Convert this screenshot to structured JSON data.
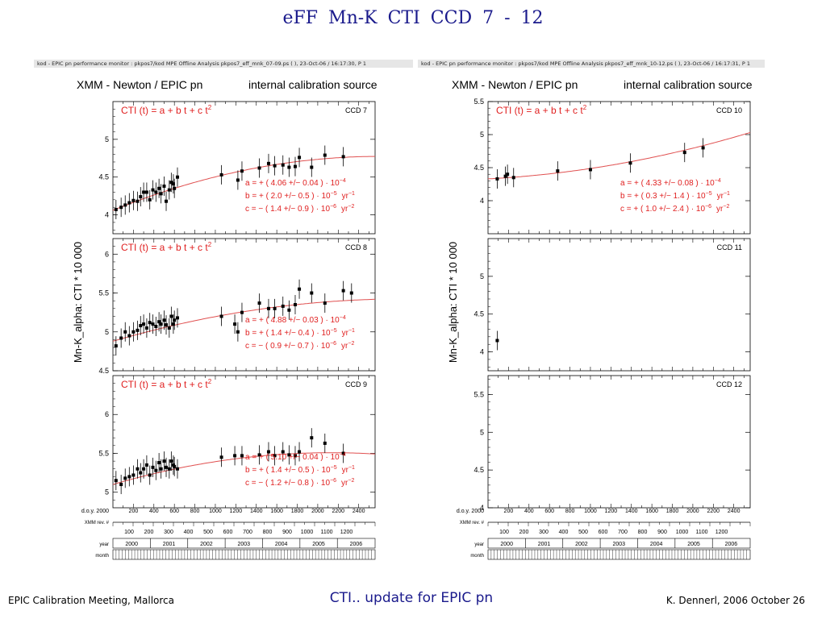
{
  "slide": {
    "title": "eFF   Mn-K   CTI   CCD 7 - 12",
    "footer_left": "EPIC Calibration Meeting, Mallorca",
    "footer_center": "CTI.. update for EPIC pn",
    "footer_right": "K. Dennerl, 2006 October 26"
  },
  "colors": {
    "fit": "#e05050",
    "text_red": "#e02020",
    "title": "#1a1a8c"
  },
  "chart_data": [
    {
      "type": "scatter",
      "monitor_label": "kod - EPIC pn performance monitor : pkpos7/kod     MPE   Offline Analysis     pkpos7_eff_mnk_07-09.ps ( ), 23-Oct-06 / 16:17:30, P   1",
      "header_left": "XMM - Newton  /  EPIC pn",
      "header_right": "internal calibration source",
      "ylabel": "Mn-K_alpha:  CTI * 10 000",
      "x_axis_label": "d.o.y. 2000",
      "x_ticks": [
        "200",
        "400",
        "600",
        "800",
        "1000",
        "1200",
        "1400",
        "1600",
        "1800",
        "2000",
        "2200",
        "2400"
      ],
      "rev_label": "XMM rev. #",
      "rev_ticks": [
        "100",
        "200",
        "300",
        "400",
        "500",
        "600",
        "700",
        "800",
        "900",
        "1000",
        "1100",
        "1200"
      ],
      "year_label": "year",
      "years": [
        "2000",
        "2001",
        "2002",
        "2003",
        "2004",
        "2005",
        "2006"
      ],
      "month_label": "month",
      "xlim": [
        0,
        2560
      ],
      "panels": [
        {
          "ccd": "CCD  7",
          "formula": "CTI (t)  =  a + b t + c t",
          "formula_sup": "2",
          "ylim": [
            3.75,
            5.5
          ],
          "yticks": [
            "4",
            "4.5",
            "5"
          ],
          "coef": {
            "a": "a  =  + ( 4.06 +/− 0.04 ) · 10",
            "a_exp": "−4",
            "b": "b  =  + ( 2.0 +/− 0.5 ) · 10",
            "b_exp": "−5",
            "b_unit": "yr",
            "b_uexp": "−1",
            "c": "c  =  − ( 1.4 +/− 0.9 ) · 10",
            "c_exp": "−6",
            "c_unit": "yr",
            "c_uexp": "−2"
          },
          "fit": {
            "a": 4.06,
            "b": 2.0,
            "c": -1.4
          },
          "points": [
            [
              30,
              4.07
            ],
            [
              80,
              4.1
            ],
            [
              120,
              4.13
            ],
            [
              160,
              4.16
            ],
            [
              200,
              4.19
            ],
            [
              240,
              4.18
            ],
            [
              270,
              4.24
            ],
            [
              300,
              4.3
            ],
            [
              330,
              4.3
            ],
            [
              360,
              4.2
            ],
            [
              390,
              4.33
            ],
            [
              420,
              4.3
            ],
            [
              450,
              4.35
            ],
            [
              470,
              4.28
            ],
            [
              500,
              4.38
            ],
            [
              520,
              4.18
            ],
            [
              550,
              4.33
            ],
            [
              570,
              4.43
            ],
            [
              590,
              4.41
            ],
            [
              600,
              4.35
            ],
            [
              630,
              4.5
            ],
            [
              1060,
              4.53
            ],
            [
              1220,
              4.46
            ],
            [
              1260,
              4.58
            ],
            [
              1430,
              4.62
            ],
            [
              1520,
              4.68
            ],
            [
              1580,
              4.65
            ],
            [
              1660,
              4.66
            ],
            [
              1720,
              4.63
            ],
            [
              1780,
              4.64
            ],
            [
              1820,
              4.76
            ],
            [
              1940,
              4.63
            ],
            [
              2070,
              4.79
            ],
            [
              2250,
              4.77
            ]
          ]
        },
        {
          "ccd": "CCD  8",
          "formula": "CTI (t)  =  a + b t + c t",
          "formula_sup": "2",
          "ylim": [
            4.5,
            6.2
          ],
          "yticks": [
            "4.5",
            "5",
            "5.5",
            "6"
          ],
          "coef": {
            "a": "a  =  + ( 4.88 +/− 0.03 ) · 10",
            "a_exp": "−4",
            "b": "b  =  + ( 1.4 +/− 0.4 ) · 10",
            "b_exp": "−5",
            "b_unit": "yr",
            "b_uexp": "−1",
            "c": "c  =  − ( 0.9 +/− 0.7 ) · 10",
            "c_exp": "−6",
            "c_unit": "yr",
            "c_uexp": "−2"
          },
          "fit": {
            "a": 4.88,
            "b": 1.4,
            "c": -0.9
          },
          "points": [
            [
              30,
              4.82
            ],
            [
              80,
              4.92
            ],
            [
              120,
              5.0
            ],
            [
              160,
              4.95
            ],
            [
              200,
              5.0
            ],
            [
              240,
              5.02
            ],
            [
              270,
              5.08
            ],
            [
              300,
              5.1
            ],
            [
              330,
              5.05
            ],
            [
              360,
              5.12
            ],
            [
              390,
              5.1
            ],
            [
              420,
              5.07
            ],
            [
              450,
              5.13
            ],
            [
              470,
              5.1
            ],
            [
              500,
              5.15
            ],
            [
              520,
              5.09
            ],
            [
              550,
              5.05
            ],
            [
              570,
              5.2
            ],
            [
              590,
              5.1
            ],
            [
              600,
              5.15
            ],
            [
              630,
              5.18
            ],
            [
              1060,
              5.2
            ],
            [
              1190,
              5.1
            ],
            [
              1220,
              5.0
            ],
            [
              1260,
              5.25
            ],
            [
              1430,
              5.37
            ],
            [
              1520,
              5.3
            ],
            [
              1580,
              5.3
            ],
            [
              1660,
              5.33
            ],
            [
              1720,
              5.28
            ],
            [
              1780,
              5.35
            ],
            [
              1820,
              5.55
            ],
            [
              1940,
              5.5
            ],
            [
              2070,
              5.37
            ],
            [
              2250,
              5.53
            ],
            [
              2330,
              5.5
            ]
          ]
        },
        {
          "ccd": "CCD  9",
          "formula": "CTI (t)  =  a + b t + c t",
          "formula_sup": "2",
          "ylim": [
            4.8,
            6.5
          ],
          "yticks": [
            "5",
            "5.5",
            "6"
          ],
          "coef": {
            "a": "a  =  + ( 5.10 +/− 0.04 ) · 10",
            "a_exp": "−4",
            "b": "b  =  + ( 1.4 +/− 0.5 ) · 10",
            "b_exp": "−5",
            "b_unit": "yr",
            "b_uexp": "−1",
            "c": "c  =  − ( 1.2 +/− 0.8 ) · 10",
            "c_exp": "−6",
            "c_unit": "yr",
            "c_uexp": "−2"
          },
          "fit": {
            "a": 5.1,
            "b": 1.4,
            "c": -1.2
          },
          "points": [
            [
              30,
              5.15
            ],
            [
              80,
              5.1
            ],
            [
              120,
              5.18
            ],
            [
              160,
              5.2
            ],
            [
              200,
              5.22
            ],
            [
              240,
              5.3
            ],
            [
              270,
              5.25
            ],
            [
              300,
              5.3
            ],
            [
              330,
              5.35
            ],
            [
              360,
              5.22
            ],
            [
              390,
              5.32
            ],
            [
              420,
              5.28
            ],
            [
              450,
              5.38
            ],
            [
              470,
              5.3
            ],
            [
              500,
              5.4
            ],
            [
              520,
              5.32
            ],
            [
              550,
              5.3
            ],
            [
              570,
              5.4
            ],
            [
              590,
              5.35
            ],
            [
              600,
              5.33
            ],
            [
              630,
              5.3
            ],
            [
              1060,
              5.45
            ],
            [
              1190,
              5.47
            ],
            [
              1260,
              5.47
            ],
            [
              1430,
              5.48
            ],
            [
              1520,
              5.52
            ],
            [
              1580,
              5.47
            ],
            [
              1660,
              5.52
            ],
            [
              1720,
              5.48
            ],
            [
              1780,
              5.47
            ],
            [
              1820,
              5.52
            ],
            [
              1940,
              5.7
            ],
            [
              2070,
              5.63
            ],
            [
              2250,
              5.5
            ]
          ]
        }
      ]
    },
    {
      "type": "scatter",
      "monitor_label": "kod - EPIC pn performance monitor : pkpos7/kod     MPE   Offline Analysis     pkpos7_eff_mnk_10-12.ps ( ), 23-Oct-06 / 16:17:31, P   1",
      "header_left": "XMM - Newton  /  EPIC pn",
      "header_right": "internal calibration source",
      "ylabel": "Mn-K_alpha:  CTI * 10 000",
      "x_axis_label": "d.o.y. 2000",
      "x_ticks": [
        "200",
        "400",
        "600",
        "800",
        "1000",
        "1200",
        "1400",
        "1600",
        "1800",
        "2000",
        "2200",
        "2400"
      ],
      "rev_label": "XMM rev. #",
      "rev_ticks": [
        "100",
        "200",
        "300",
        "400",
        "500",
        "600",
        "700",
        "800",
        "900",
        "1000",
        "1100",
        "1200"
      ],
      "year_label": "year",
      "years": [
        "2000",
        "2001",
        "2002",
        "2003",
        "2004",
        "2005",
        "2006"
      ],
      "month_label": "month",
      "xlim": [
        0,
        2560
      ],
      "panels": [
        {
          "ccd": "CCD  10",
          "formula": "CTI (t)  =  a + b t + c t",
          "formula_sup": "2",
          "ylim": [
            3.5,
            5.5
          ],
          "yticks": [
            "4",
            "4.5",
            "5",
            "5.5"
          ],
          "coef": {
            "a": "a  =  + ( 4.33 +/− 0.08 ) · 10",
            "a_exp": "−4",
            "b": "b  =  + ( 0.3 +/− 1.4 ) · 10",
            "b_exp": "−5",
            "b_unit": "yr",
            "b_uexp": "−1",
            "c": "c  =  + ( 1.0 +/− 2.4 ) · 10",
            "c_exp": "−6",
            "c_unit": "yr",
            "c_uexp": "−2"
          },
          "fit": {
            "a": 4.33,
            "b": 0.3,
            "c": 1.0
          },
          "points": [
            [
              90,
              4.33
            ],
            [
              170,
              4.37
            ],
            [
              190,
              4.4
            ],
            [
              250,
              4.35
            ],
            [
              680,
              4.45
            ],
            [
              1000,
              4.47
            ],
            [
              1390,
              4.57
            ],
            [
              1920,
              4.73
            ],
            [
              2100,
              4.8
            ]
          ]
        },
        {
          "ccd": "CCD  11",
          "formula": "",
          "formula_sup": "",
          "ylim": [
            3.75,
            5.5
          ],
          "yticks": [
            "4",
            "4.5",
            "5"
          ],
          "coef": null,
          "fit": null,
          "points": [
            [
              90,
              4.15
            ]
          ]
        },
        {
          "ccd": "CCD  12",
          "formula": "",
          "formula_sup": "",
          "ylim": [
            4.0,
            5.75
          ],
          "yticks": [
            "4",
            "4.5",
            "5",
            "5.5"
          ],
          "coef": null,
          "fit": null,
          "points": []
        }
      ]
    }
  ]
}
